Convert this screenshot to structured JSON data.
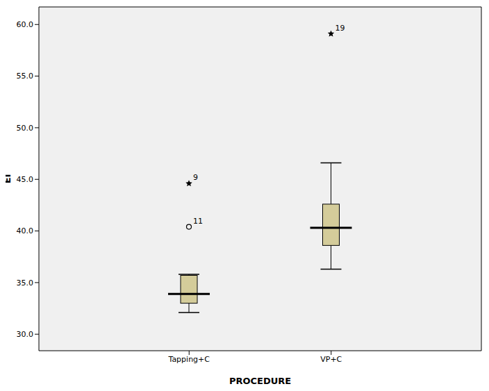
{
  "chart_data": {
    "type": "box",
    "x_label": "PROCEDURE",
    "y_label": "EI",
    "categories": [
      "Tapping+C",
      "VP+C"
    ],
    "whisker_low": [
      32.1,
      36.3
    ],
    "q1": [
      33.0,
      38.6
    ],
    "median": [
      33.9,
      40.3
    ],
    "q3": [
      35.7,
      42.6
    ],
    "whisker_high": [
      35.8,
      46.6
    ],
    "outliers": [
      [
        {
          "value": 44.6,
          "label": "9",
          "marker": "star"
        },
        {
          "value": 40.4,
          "label": "11",
          "marker": "circle"
        }
      ],
      [
        {
          "value": 59.1,
          "label": "19",
          "marker": "star"
        }
      ]
    ],
    "color": "#d4cc9a",
    "ylim": [
      28.4,
      61.7
    ],
    "yticks": [
      {
        "value": 30,
        "label": "30.0"
      },
      {
        "value": 35,
        "label": "35.0"
      },
      {
        "value": 40,
        "label": "40.0"
      },
      {
        "value": 45,
        "label": "45.0"
      },
      {
        "value": 50,
        "label": "50.0"
      },
      {
        "value": 55,
        "label": "55.0"
      },
      {
        "value": 60,
        "label": "60.0"
      }
    ],
    "grid": false
  }
}
